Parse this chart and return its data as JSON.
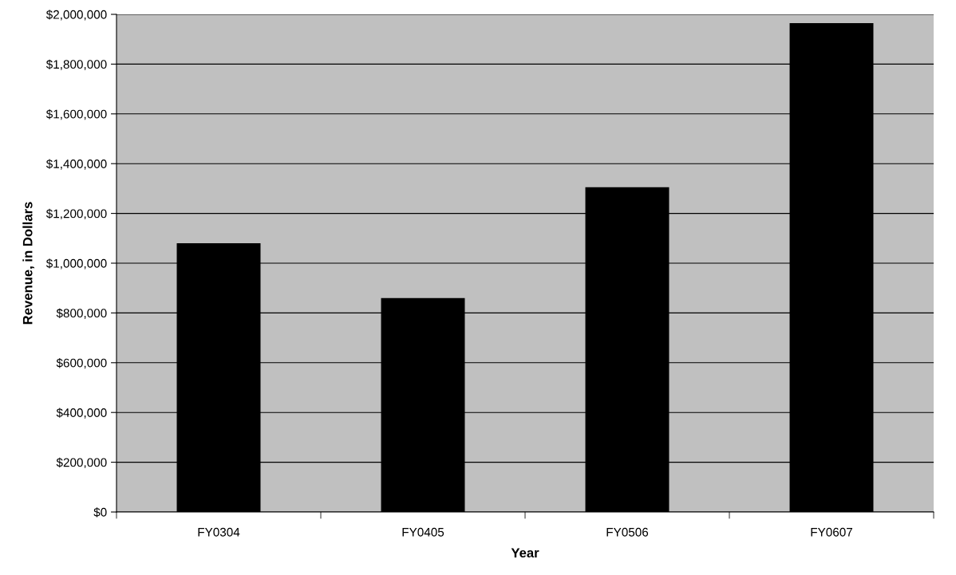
{
  "chart_data": {
    "type": "bar",
    "xlabel": "Year",
    "ylabel": "Revenue, in Dollars",
    "categories": [
      "FY0304",
      "FY0405",
      "FY0506",
      "FY0607"
    ],
    "values": [
      1080000,
      860000,
      1305000,
      1965000
    ],
    "color": "#000000",
    "ylim": [
      0,
      2000000
    ],
    "yticks": [
      {
        "value": 0,
        "label": "$0"
      },
      {
        "value": 200000,
        "label": "$200,000"
      },
      {
        "value": 400000,
        "label": "$400,000"
      },
      {
        "value": 600000,
        "label": "$600,000"
      },
      {
        "value": 800000,
        "label": "$800,000"
      },
      {
        "value": 1000000,
        "label": "$1,000,000"
      },
      {
        "value": 1200000,
        "label": "$1,200,000"
      },
      {
        "value": 1400000,
        "label": "$1,400,000"
      },
      {
        "value": 1600000,
        "label": "$1,600,000"
      },
      {
        "value": 1800000,
        "label": "$1,800,000"
      },
      {
        "value": 2000000,
        "label": "$2,000,000"
      }
    ],
    "grid": "y"
  }
}
